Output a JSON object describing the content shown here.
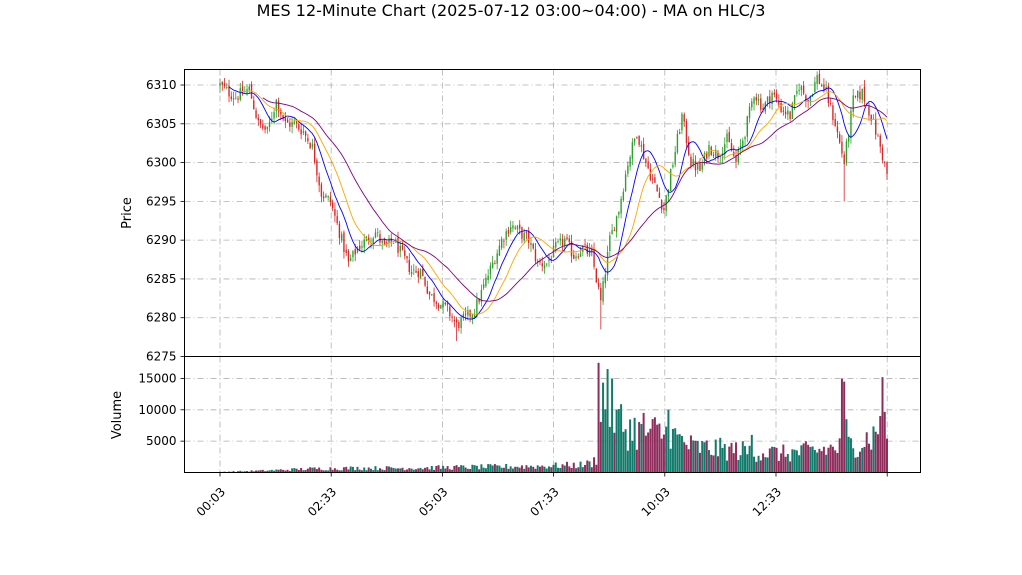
{
  "chart_data": {
    "type": "candlestick",
    "title": "MES 12-Minute Chart (2025-07-12 03:00~04:00) - MA on HLC/3",
    "price_panel": {
      "ylabel": "Price",
      "ylim": [
        6275,
        6312
      ],
      "yticks": [
        6275,
        6280,
        6285,
        6290,
        6295,
        6300,
        6305,
        6310
      ]
    },
    "volume_panel": {
      "ylabel": "Volume",
      "ylim": [
        0,
        18500
      ],
      "yticks": [
        5000,
        10000,
        15000
      ],
      "ytick_labels": [
        "5000",
        "10000",
        "15000"
      ]
    },
    "xtick_labels": [
      "00:03",
      "02:33",
      "05:03",
      "07:33",
      "10:03",
      "12:33"
    ],
    "grid": true,
    "colors": {
      "up": "#2ca02c",
      "down": "#d62728",
      "vol_up": "#127a6a",
      "vol_down": "#8e2d5c",
      "ma_fast": "#0000ff",
      "ma_mid": "#ffa500",
      "ma_slow": "#800080"
    },
    "close_anchors": [
      [
        0,
        6310
      ],
      [
        4,
        6309
      ],
      [
        7,
        6308.5
      ],
      [
        13,
        6309.5
      ],
      [
        17,
        6305
      ],
      [
        21,
        6304
      ],
      [
        25,
        6308
      ],
      [
        29,
        6305
      ],
      [
        33,
        6305
      ],
      [
        37,
        6304
      ],
      [
        41,
        6302
      ],
      [
        45,
        6296
      ],
      [
        49,
        6295
      ],
      [
        53,
        6291
      ],
      [
        57,
        6287
      ],
      [
        61,
        6289
      ],
      [
        65,
        6290
      ],
      [
        69,
        6291
      ],
      [
        73,
        6289
      ],
      [
        77,
        6290
      ],
      [
        81,
        6288
      ],
      [
        85,
        6286
      ],
      [
        89,
        6286
      ],
      [
        93,
        6283
      ],
      [
        97,
        6282
      ],
      [
        101,
        6281
      ],
      [
        105,
        6279
      ],
      [
        109,
        6280
      ],
      [
        113,
        6281
      ],
      [
        117,
        6284
      ],
      [
        121,
        6287
      ],
      [
        125,
        6290
      ],
      [
        129,
        6292
      ],
      [
        133,
        6291
      ],
      [
        137,
        6290
      ],
      [
        141,
        6287
      ],
      [
        145,
        6287
      ],
      [
        149,
        6289
      ],
      [
        153,
        6290
      ],
      [
        157,
        6288
      ],
      [
        161,
        6289
      ],
      [
        165,
        6288
      ],
      [
        169,
        6282
      ],
      [
        173,
        6290
      ],
      [
        177,
        6294
      ],
      [
        181,
        6300
      ],
      [
        185,
        6304
      ],
      [
        189,
        6300
      ],
      [
        193,
        6297
      ],
      [
        197,
        6294
      ],
      [
        201,
        6300
      ],
      [
        205,
        6306
      ],
      [
        209,
        6300
      ],
      [
        213,
        6299
      ],
      [
        217,
        6302
      ],
      [
        221,
        6301
      ],
      [
        225,
        6303
      ],
      [
        229,
        6300
      ],
      [
        233,
        6304
      ],
      [
        237,
        6309
      ],
      [
        241,
        6307
      ],
      [
        245,
        6309
      ],
      [
        249,
        6307
      ],
      [
        253,
        6306
      ],
      [
        257,
        6310
      ],
      [
        261,
        6308
      ],
      [
        265,
        6311
      ],
      [
        269,
        6309
      ],
      [
        273,
        6305
      ],
      [
        277,
        6300
      ],
      [
        281,
        6308
      ],
      [
        285,
        6309
      ],
      [
        289,
        6306
      ],
      [
        293,
        6302
      ],
      [
        296,
        6298.5
      ]
    ],
    "low_anchors": [
      [
        105,
        6277
      ],
      [
        169,
        6278.5
      ],
      [
        277,
        6295
      ]
    ],
    "volume_anchors": [
      [
        0,
        100
      ],
      [
        20,
        300
      ],
      [
        40,
        600
      ],
      [
        60,
        700
      ],
      [
        80,
        700
      ],
      [
        100,
        800
      ],
      [
        120,
        900
      ],
      [
        140,
        1000
      ],
      [
        160,
        1200
      ],
      [
        165,
        1500
      ],
      [
        168,
        2500
      ],
      [
        170,
        12000
      ],
      [
        180,
        7000
      ],
      [
        200,
        6000
      ],
      [
        210,
        4000
      ],
      [
        230,
        3500
      ],
      [
        250,
        3000
      ],
      [
        265,
        3500
      ],
      [
        275,
        4000
      ],
      [
        285,
        5000
      ],
      [
        296,
        7000
      ]
    ],
    "volume_spikes": [
      [
        168,
        17500
      ],
      [
        172,
        16500
      ],
      [
        176,
        10000
      ],
      [
        188,
        9500
      ],
      [
        199,
        10000
      ],
      [
        236,
        6000
      ],
      [
        276,
        15000
      ],
      [
        277,
        14500
      ],
      [
        278,
        8500
      ],
      [
        291,
        6500
      ],
      [
        293,
        9000
      ],
      [
        294,
        15200
      ]
    ],
    "n_bars": 297,
    "ma_periods": [
      5,
      10,
      20
    ]
  }
}
